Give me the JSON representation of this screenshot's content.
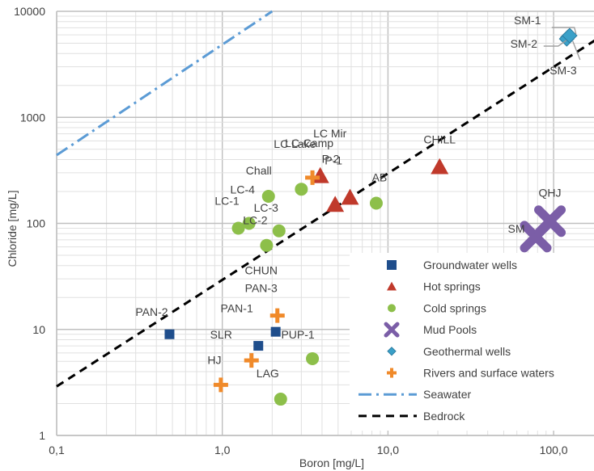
{
  "chart_data": {
    "type": "scatter",
    "xlabel": "Boron [mg/L]",
    "ylabel": "Chloride [mg/L]",
    "x_scale": "log",
    "y_scale": "log",
    "xlim": [
      0.1,
      200
    ],
    "ylim": [
      1,
      10000
    ],
    "x_ticks": [
      {
        "value": 0.1,
        "label": "0,1"
      },
      {
        "value": 1,
        "label": "1,0"
      },
      {
        "value": 10,
        "label": "10,0"
      },
      {
        "value": 100,
        "label": "100,0"
      }
    ],
    "y_ticks": [
      {
        "value": 1,
        "label": "1"
      },
      {
        "value": 10,
        "label": "10"
      },
      {
        "value": 100,
        "label": "100"
      },
      {
        "value": 1000,
        "label": "1000"
      },
      {
        "value": 10000,
        "label": "10000"
      }
    ],
    "grid": true,
    "legend_position": "bottom-right",
    "series": [
      {
        "name": "Groundwater wells",
        "marker": "square",
        "color": "#1f4e8c",
        "points": [
          {
            "x": 0.48,
            "y": 9,
            "label": "PAN-2"
          },
          {
            "x": 1.65,
            "y": 7,
            "label": "SLR"
          },
          {
            "x": 2.1,
            "y": 9.5,
            "label": "PAN-1"
          }
        ]
      },
      {
        "name": "Hot springs",
        "marker": "triangle",
        "color": "#c0392b",
        "points": [
          {
            "x": 3.9,
            "y": 280,
            "label": "LC Mir"
          },
          {
            "x": 4.8,
            "y": 150,
            "label": "P-1"
          },
          {
            "x": 5.9,
            "y": 175,
            "label": "P-2"
          },
          {
            "x": 20.5,
            "y": 340,
            "label": "CHILL"
          }
        ]
      },
      {
        "name": "Cold springs",
        "marker": "circle",
        "color": "#8dbf4a",
        "points": [
          {
            "x": 1.25,
            "y": 90,
            "label": "LC-1"
          },
          {
            "x": 1.45,
            "y": 100,
            "label": "LC-4"
          },
          {
            "x": 1.9,
            "y": 180,
            "label": "Chall"
          },
          {
            "x": 1.85,
            "y": 62,
            "label": "LC-2"
          },
          {
            "x": 2.2,
            "y": 85,
            "label": "LC-3"
          },
          {
            "x": 3.0,
            "y": 210,
            "label": "LC-Lake"
          },
          {
            "x": 8.5,
            "y": 155,
            "label": "AB"
          },
          {
            "x": 3.5,
            "y": 5.3,
            "label": "PUP-1"
          },
          {
            "x": 2.25,
            "y": 2.2,
            "label": "LAG"
          }
        ]
      },
      {
        "name": "Mud Pools",
        "marker": "cross",
        "color": "#7b5ea7",
        "points": [
          {
            "x": 78,
            "y": 75,
            "label": "SM"
          },
          {
            "x": 95,
            "y": 105,
            "label": "QHJ"
          }
        ]
      },
      {
        "name": "Geothermal wells",
        "marker": "diamond",
        "color": "#3aa0c8",
        "points": [
          {
            "x": 122,
            "y": 5700,
            "label": "SM-1"
          },
          {
            "x": 120,
            "y": 5500,
            "label": "SM-2"
          },
          {
            "x": 125,
            "y": 5900,
            "label": "SM-3"
          }
        ]
      },
      {
        "name": "Rivers and surface waters",
        "marker": "plus",
        "color": "#f08a2a",
        "points": [
          {
            "x": 0.98,
            "y": 3,
            "label": "HJ"
          },
          {
            "x": 1.5,
            "y": 5.1,
            "label": ""
          },
          {
            "x": 2.15,
            "y": 13.5,
            "label": "CHUN"
          },
          {
            "x": 3.5,
            "y": 270,
            "label": "LC-Camp"
          }
        ]
      }
    ],
    "lines": [
      {
        "name": "Seawater",
        "style": "dash-dot",
        "color": "#5b9bd5",
        "x": [
          0.1,
          2.0
        ],
        "y": [
          440,
          10000
        ]
      },
      {
        "name": "Bedrock",
        "style": "dashed",
        "color": "#000000",
        "x": [
          0.1,
          200
        ],
        "y": [
          2.9,
          6000
        ]
      }
    ],
    "annotations": [
      {
        "text": "PAN-2",
        "x": 0.48,
        "y": 9
      },
      {
        "text": "PAN-1",
        "x": 2.1,
        "y": 9.5
      },
      {
        "text": "SLR",
        "x": 1.65,
        "y": 7
      },
      {
        "text": "HJ",
        "x": 0.98,
        "y": 3
      },
      {
        "text": "CHUN",
        "x": 2.15,
        "y": 13.5
      },
      {
        "text": "PAN-3",
        "x": 2.15,
        "y": 13.5
      },
      {
        "text": "PUP-1",
        "x": 3.5,
        "y": 5.3
      },
      {
        "text": "LAG",
        "x": 2.25,
        "y": 2.2
      },
      {
        "text": "LC-1",
        "x": 1.25,
        "y": 90
      },
      {
        "text": "LC-4",
        "x": 1.45,
        "y": 100
      },
      {
        "text": "LC-2",
        "x": 1.85,
        "y": 62
      },
      {
        "text": "LC-3",
        "x": 2.2,
        "y": 85
      },
      {
        "text": "Chall",
        "x": 1.9,
        "y": 180
      },
      {
        "text": "LC-Camp",
        "x": 3.5,
        "y": 270
      },
      {
        "text": "LC Lake",
        "x": 3.0,
        "y": 210
      },
      {
        "text": "LC Mir",
        "x": 3.9,
        "y": 280
      },
      {
        "text": "P-1",
        "x": 4.8,
        "y": 150
      },
      {
        "text": "P-2",
        "x": 5.9,
        "y": 175
      },
      {
        "text": "AB",
        "x": 8.5,
        "y": 155
      },
      {
        "text": "CHILL",
        "x": 20.5,
        "y": 340
      },
      {
        "text": "SM",
        "x": 78,
        "y": 75
      },
      {
        "text": "QHJ",
        "x": 95,
        "y": 105
      },
      {
        "text": "SM-1",
        "x": 122,
        "y": 5700
      },
      {
        "text": "SM-2",
        "x": 120,
        "y": 5500
      },
      {
        "text": "SM-3",
        "x": 125,
        "y": 5900
      }
    ]
  }
}
